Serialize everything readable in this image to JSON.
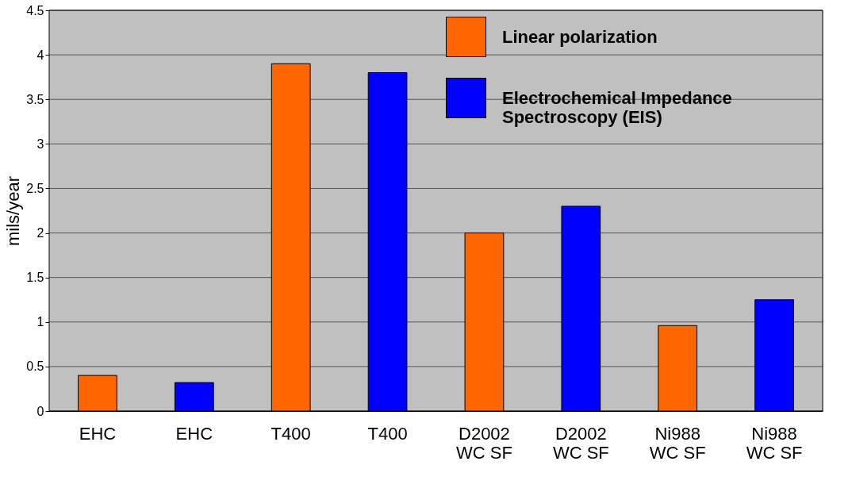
{
  "chart_data": {
    "type": "bar",
    "ylabel": "mils/year",
    "categories": [
      "EHC",
      "EHC",
      "T400",
      "T400",
      "D2002\nWC SF",
      "D2002\nWC SF",
      "Ni988\nWC SF",
      "Ni988\nWC SF"
    ],
    "series": [
      {
        "name": "Linear polarization",
        "color": "#ff6600",
        "values": [
          0.4,
          null,
          3.9,
          null,
          2.0,
          null,
          0.96,
          null
        ]
      },
      {
        "name": "Electrochemical Impedance\nSpectroscopy (EIS)",
        "color": "#0000ff",
        "values": [
          null,
          0.32,
          null,
          3.8,
          null,
          2.3,
          null,
          1.25
        ]
      }
    ],
    "ylim": [
      0,
      4.5
    ],
    "yticks": [
      0,
      0.5,
      1,
      1.5,
      2,
      2.5,
      3,
      3.5,
      4,
      4.5
    ],
    "grid": "y",
    "legend": "top right"
  }
}
